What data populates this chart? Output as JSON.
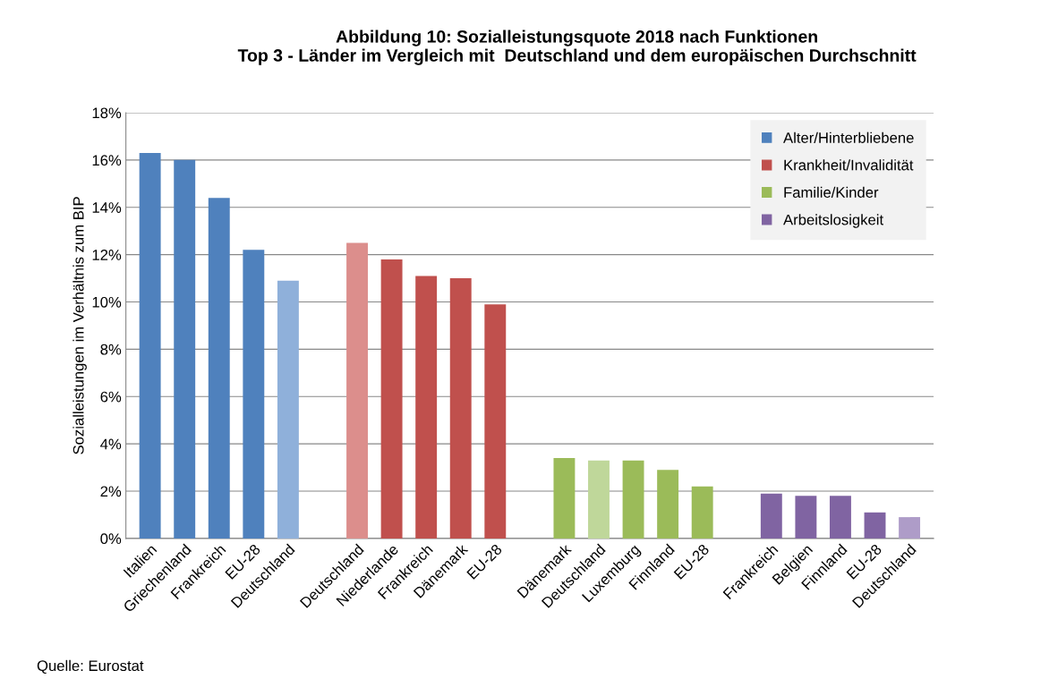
{
  "chart_data": {
    "type": "bar",
    "title": "Abbildung 10: Sozialleistungsquote 2018 nach Funktionen\nTop 3 - Länder im Vergleich mit  Deutschland und dem europäischen Durchschnitt",
    "ylabel": "Sozialleistungen im Verhältnis zum BIP",
    "categories": [
      "Italien",
      "Griechenland",
      "Frankreich",
      "EU-28",
      "Deutschland",
      null,
      "Deutschland",
      "Niederlande",
      "Frankreich",
      "Dänemark",
      "EU-28",
      null,
      "Dänemark",
      "Deutschland",
      "Luxemburg",
      "Finnland",
      "EU-28",
      null,
      "Frankreich",
      "Belgien",
      "Finnland",
      "EU-28",
      "Deutschland"
    ],
    "series": [
      {
        "name": "Alter/Hinterbliebene",
        "color": "#4f81bd",
        "colors": [
          "#4f81bd",
          "#4f81bd",
          "#4f81bd",
          "#4f81bd",
          "#8fb0da",
          null,
          null,
          null,
          null,
          null,
          null,
          null,
          null,
          null,
          null,
          null,
          null,
          null,
          null,
          null,
          null,
          null,
          null
        ],
        "values": [
          16.3,
          16.0,
          14.4,
          12.2,
          10.9,
          null,
          null,
          null,
          null,
          null,
          null,
          null,
          null,
          null,
          null,
          null,
          null,
          null,
          null,
          null,
          null,
          null,
          null
        ]
      },
      {
        "name": "Krankheit/Invalidität",
        "color": "#c0504d",
        "colors": [
          null,
          null,
          null,
          null,
          null,
          null,
          "#dc8e8c",
          "#c0504d",
          "#c0504d",
          "#c0504d",
          "#c0504d",
          null,
          null,
          null,
          null,
          null,
          null,
          null,
          null,
          null,
          null,
          null,
          null
        ],
        "values": [
          null,
          null,
          null,
          null,
          null,
          null,
          12.5,
          11.8,
          11.1,
          11.0,
          9.9,
          null,
          null,
          null,
          null,
          null,
          null,
          null,
          null,
          null,
          null,
          null,
          null
        ]
      },
      {
        "name": "Familie/Kinder",
        "color": "#9bbb59",
        "colors": [
          null,
          null,
          null,
          null,
          null,
          null,
          null,
          null,
          null,
          null,
          null,
          null,
          "#9bbb59",
          "#bfd79a",
          "#9bbb59",
          "#9bbb59",
          "#9bbb59",
          null,
          null,
          null,
          null,
          null,
          null
        ],
        "values": [
          null,
          null,
          null,
          null,
          null,
          null,
          null,
          null,
          null,
          null,
          null,
          null,
          3.4,
          3.3,
          3.3,
          2.9,
          2.2,
          null,
          null,
          null,
          null,
          null,
          null
        ]
      },
      {
        "name": "Arbeitslosigkeit",
        "color": "#8064a2",
        "colors": [
          null,
          null,
          null,
          null,
          null,
          null,
          null,
          null,
          null,
          null,
          null,
          null,
          null,
          null,
          null,
          null,
          null,
          null,
          "#8064a2",
          "#8064a2",
          "#8064a2",
          "#8064a2",
          "#ae9cc8"
        ],
        "values": [
          null,
          null,
          null,
          null,
          null,
          null,
          null,
          null,
          null,
          null,
          null,
          null,
          null,
          null,
          null,
          null,
          null,
          null,
          1.9,
          1.8,
          1.8,
          1.1,
          0.9
        ]
      }
    ],
    "ylim": [
      0,
      18
    ],
    "yticks": [
      {
        "value": 0,
        "label": "0%"
      },
      {
        "value": 2,
        "label": "2%"
      },
      {
        "value": 4,
        "label": "4%"
      },
      {
        "value": 6,
        "label": "6%"
      },
      {
        "value": 8,
        "label": "8%"
      },
      {
        "value": 10,
        "label": "10%"
      },
      {
        "value": 12,
        "label": "12%"
      },
      {
        "value": 14,
        "label": "14%"
      },
      {
        "value": 16,
        "label": "16%"
      },
      {
        "value": 18,
        "label": "18%"
      }
    ],
    "grid": "y",
    "legend": "top right",
    "annotations": [
      "Quelle: Eurostat"
    ]
  }
}
